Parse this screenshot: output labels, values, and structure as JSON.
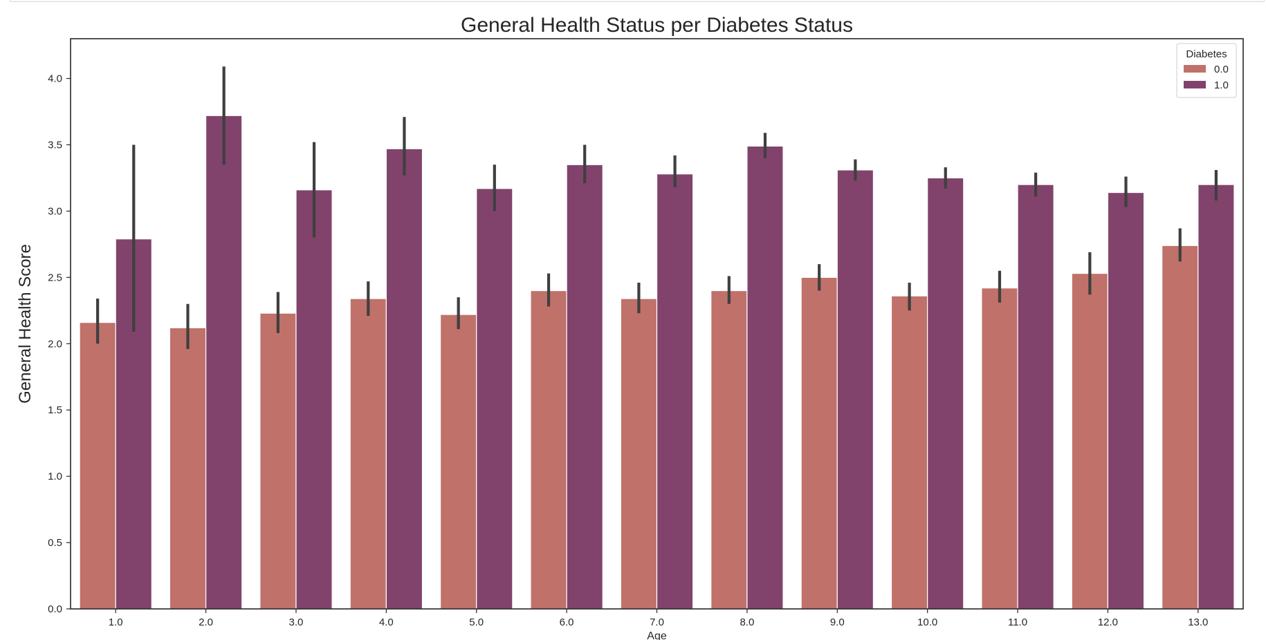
{
  "chart_data": {
    "type": "bar",
    "title": "General Health Status per Diabetes Status",
    "xlabel": "Age",
    "ylabel": "General Health Score",
    "ylim": [
      0,
      4.3
    ],
    "yticks": [
      "0.0",
      "0.5",
      "1.0",
      "1.5",
      "2.0",
      "2.5",
      "3.0",
      "3.5",
      "4.0"
    ],
    "categories": [
      "1.0",
      "2.0",
      "3.0",
      "4.0",
      "5.0",
      "6.0",
      "7.0",
      "8.0",
      "9.0",
      "10.0",
      "11.0",
      "12.0",
      "13.0"
    ],
    "legend": {
      "title": "Diabetes",
      "placement": "top-right"
    },
    "grid": false,
    "series": [
      {
        "name": "0.0",
        "color": "#c0716a",
        "values": [
          2.16,
          2.12,
          2.23,
          2.34,
          2.22,
          2.4,
          2.34,
          2.4,
          2.5,
          2.36,
          2.42,
          2.53,
          2.74
        ],
        "err_low": [
          2.0,
          1.96,
          2.08,
          2.21,
          2.11,
          2.28,
          2.23,
          2.3,
          2.4,
          2.25,
          2.31,
          2.37,
          2.62
        ],
        "err_high": [
          2.34,
          2.3,
          2.39,
          2.47,
          2.35,
          2.53,
          2.46,
          2.51,
          2.6,
          2.46,
          2.55,
          2.69,
          2.87
        ]
      },
      {
        "name": "1.0",
        "color": "#81436b",
        "values": [
          2.79,
          3.72,
          3.16,
          3.47,
          3.17,
          3.35,
          3.28,
          3.49,
          3.31,
          3.25,
          3.2,
          3.14,
          3.2
        ],
        "err_low": [
          2.09,
          3.35,
          2.8,
          3.27,
          3.0,
          3.21,
          3.18,
          3.4,
          3.23,
          3.17,
          3.11,
          3.03,
          3.08
        ],
        "err_high": [
          3.5,
          4.09,
          3.52,
          3.71,
          3.35,
          3.5,
          3.42,
          3.59,
          3.39,
          3.33,
          3.29,
          3.26,
          3.31
        ]
      }
    ],
    "error_bar_color": "#3f3f3f"
  }
}
